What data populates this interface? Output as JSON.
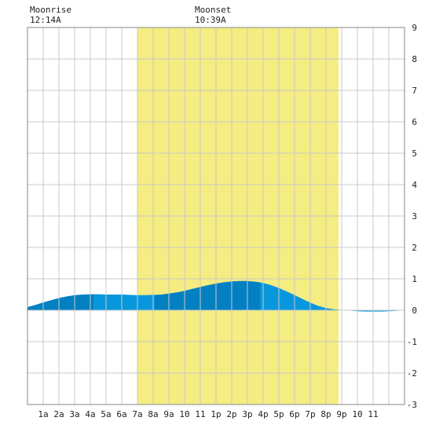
{
  "chart_data": {
    "type": "area",
    "moonrise": {
      "label": "Moonrise",
      "time": "12:14A",
      "hour": 0.233
    },
    "moonset": {
      "label": "Moonset",
      "time": "10:39A",
      "hour": 10.65
    },
    "daylight": {
      "start_hour": 7.0,
      "end_hour": 19.8,
      "color": "#f5ec82"
    },
    "x_tick_labels": [
      "1a",
      "2a",
      "3a",
      "4a",
      "5a",
      "6a",
      "7a",
      "8a",
      "9a",
      "10",
      "11",
      "1p",
      "2p",
      "3p",
      "4p",
      "5p",
      "6p",
      "7p",
      "8p",
      "9p",
      "10",
      "11"
    ],
    "xlim": [
      0,
      24
    ],
    "ylim": [
      -3,
      9
    ],
    "y_ticks": [
      "-3",
      "-2",
      "-1",
      "0",
      "1",
      "2",
      "3",
      "4",
      "5",
      "6",
      "7",
      "8",
      "9"
    ],
    "grid": true,
    "colors": {
      "fill_dark": "#0280c2",
      "fill_light": "#0897dd",
      "grid": "#c8c8c8",
      "frame": "#888888"
    },
    "series": [
      {
        "x": [
          0,
          0.5,
          1,
          1.5,
          2,
          2.5,
          3,
          3.5,
          4,
          4.5,
          5,
          5.5,
          6,
          6.5,
          7,
          7.5,
          8,
          8.5,
          9,
          9.5,
          10,
          10.5,
          11,
          11.5,
          12,
          12.5,
          13,
          13.5,
          14,
          14.5,
          15,
          15.5,
          16,
          16.5,
          17,
          17.5,
          18,
          18.5,
          19,
          19.5,
          20,
          20.5,
          21,
          21.5,
          22,
          22.5,
          23,
          23.5,
          24
        ],
        "values": [
          0.1,
          0.17,
          0.25,
          0.32,
          0.39,
          0.44,
          0.48,
          0.5,
          0.51,
          0.51,
          0.5,
          0.5,
          0.5,
          0.49,
          0.48,
          0.48,
          0.49,
          0.5,
          0.53,
          0.57,
          0.62,
          0.68,
          0.74,
          0.8,
          0.85,
          0.89,
          0.92,
          0.93,
          0.93,
          0.91,
          0.87,
          0.8,
          0.71,
          0.6,
          0.48,
          0.36,
          0.24,
          0.14,
          0.07,
          0.03,
          0.01,
          -0.01,
          -0.03,
          -0.04,
          -0.04,
          -0.04,
          -0.03,
          -0.02,
          0.0
        ]
      }
    ],
    "shading_bands_hours": [
      [
        0,
        4.2
      ],
      [
        4.2,
        8.1
      ],
      [
        8.1,
        14.8
      ],
      [
        14.8,
        24
      ]
    ]
  }
}
